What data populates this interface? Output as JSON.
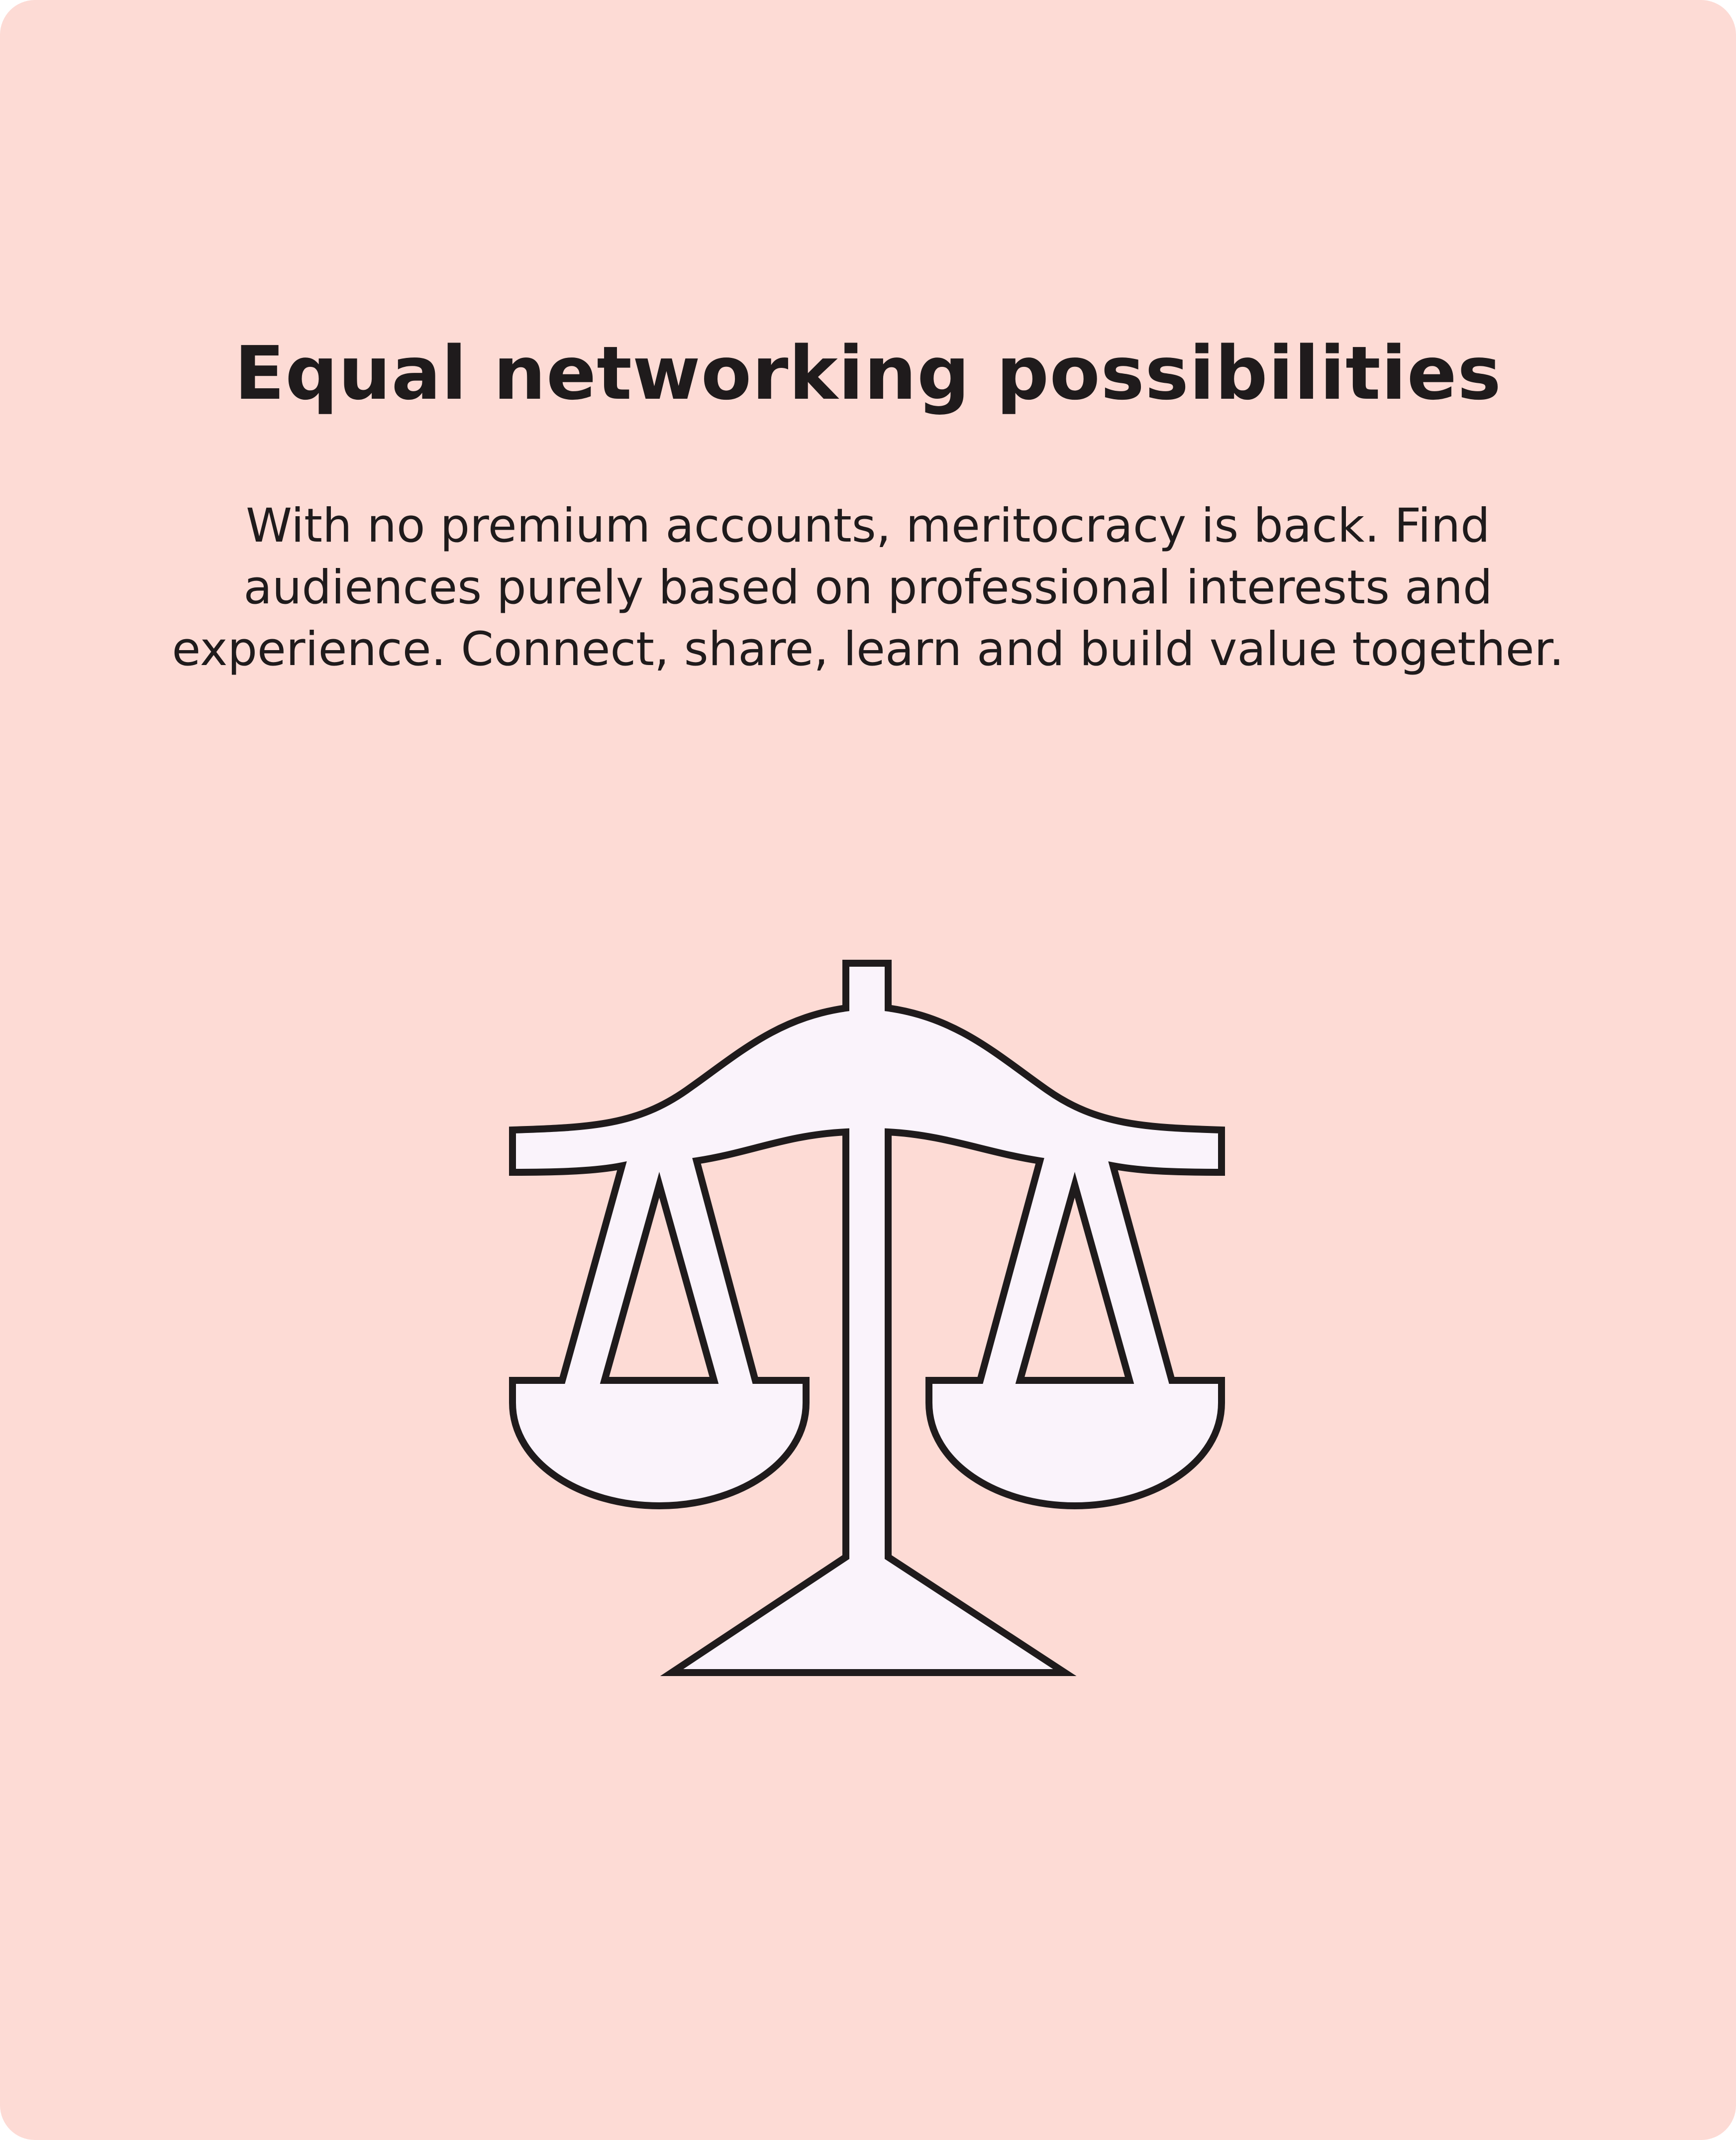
{
  "card": {
    "title": "Equal networking possibilities",
    "description": "With no premium accounts, meritocracy is back. Find audiences purely based on professional interests and experience. Connect, share, learn and build value together."
  },
  "illustration": {
    "icon": "scales-of-justice-icon",
    "fill_color": "#faf3fb",
    "stroke_color": "#1f1b1c"
  },
  "colors": {
    "background": "#fddbd5",
    "text": "#1f1b1c"
  }
}
